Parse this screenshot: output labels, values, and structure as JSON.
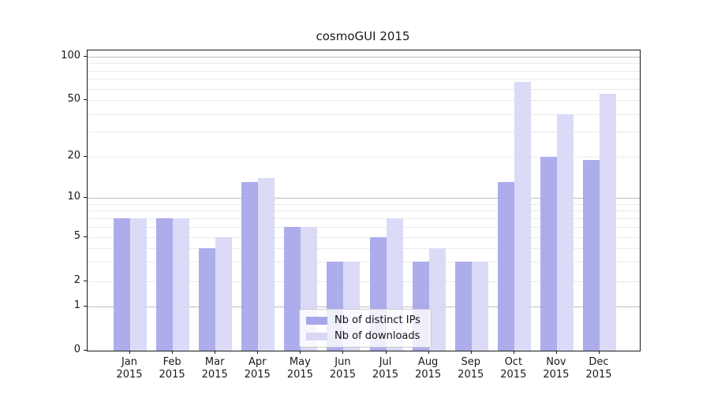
{
  "title": "cosmoGUI 2015",
  "chart_data": {
    "type": "bar",
    "title": "cosmoGUI 2015",
    "categories": [
      "Jan 2015",
      "Feb 2015",
      "Mar 2015",
      "Apr 2015",
      "May 2015",
      "Jun 2015",
      "Jul 2015",
      "Aug 2015",
      "Sep 2015",
      "Oct 2015",
      "Nov 2015",
      "Dec 2015"
    ],
    "series": [
      {
        "name": "Nb of distinct IPs",
        "color": "#a6a6ea",
        "values": [
          7,
          7,
          4,
          13,
          6,
          3,
          5,
          3,
          3,
          13,
          20,
          19
        ]
      },
      {
        "name": "Nb of downloads",
        "color": "#d8d8f6",
        "values": [
          7,
          7,
          5,
          14,
          6,
          3,
          7,
          4,
          3,
          67,
          40,
          55
        ]
      }
    ],
    "xlabel": "",
    "ylabel": "",
    "yscale": "symlog-like (linear 0-1, log above)",
    "y_tick_values": [
      0,
      1,
      2,
      5,
      10,
      20,
      50,
      100
    ],
    "y_tick_labels": [
      "0",
      "1",
      "2",
      "5",
      "10",
      "20",
      "50",
      "100"
    ],
    "ylim": [
      0,
      110
    ],
    "grid": "horizontal, major at 1/10/100, minor at 2-9 per decade",
    "legend_position": "lower center",
    "bar_alpha": 0.8
  },
  "colors": {
    "series1": "#a6a6ea",
    "series2": "#d8d8f6",
    "grid_major": "#bdbdbd",
    "grid_minor": "#eaeaea",
    "spine": "#1a1a1a",
    "text": "#1a1a1a",
    "legend_border": "#cccccc"
  }
}
